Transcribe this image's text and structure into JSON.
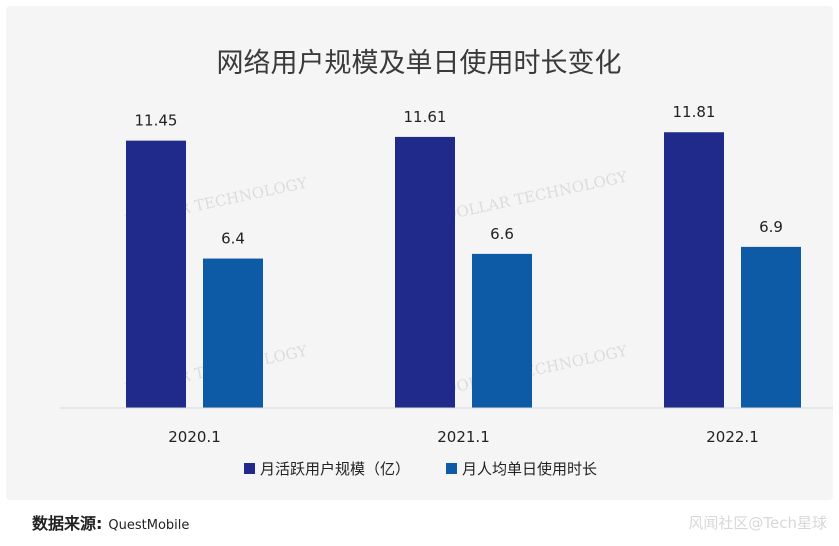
{
  "chart_data": {
    "type": "bar",
    "title": "网络用户规模及单日使用时长变化",
    "categories": [
      "2020.1",
      "2021.1",
      "2022.1"
    ],
    "series": [
      {
        "name": "月活跃用户规模（亿）",
        "values": [
          11.45,
          11.61,
          11.81
        ],
        "labels": [
          "11.45",
          "11.61",
          "11.81"
        ],
        "color": "#1f2a8a"
      },
      {
        "name": "月人均单日使用时长",
        "values": [
          6.4,
          6.6,
          6.9
        ],
        "labels": [
          "6.4",
          "6.6",
          "6.9"
        ],
        "color": "#0d5aa7"
      }
    ],
    "xlabel": "",
    "ylabel": "",
    "grid": false,
    "legend": "bottom",
    "watermark": "DOLLAR TECHNOLOGY"
  },
  "footer": {
    "source_label": "数据来源:",
    "source_value": "QuestMobile",
    "credit": "风闻社区@Tech星球"
  }
}
